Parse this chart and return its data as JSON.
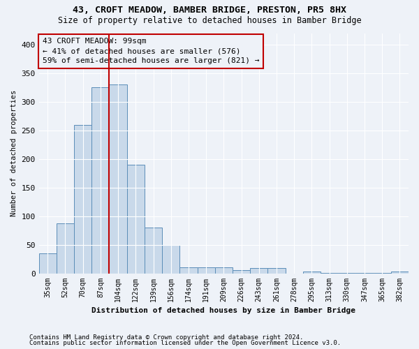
{
  "title1": "43, CROFT MEADOW, BAMBER BRIDGE, PRESTON, PR5 8HX",
  "title2": "Size of property relative to detached houses in Bamber Bridge",
  "xlabel": "Distribution of detached houses by size in Bamber Bridge",
  "ylabel": "Number of detached properties",
  "footnote1": "Contains HM Land Registry data © Crown copyright and database right 2024.",
  "footnote2": "Contains public sector information licensed under the Open Government Licence v3.0.",
  "annotation_line1": "43 CROFT MEADOW: 99sqm",
  "annotation_line2": "← 41% of detached houses are smaller (576)",
  "annotation_line3": "59% of semi-detached houses are larger (821) →",
  "bar_color": "#c9d9ea",
  "bar_edge_color": "#5b8db8",
  "vline_color": "#c00000",
  "categories": [
    "35sqm",
    "52sqm",
    "70sqm",
    "87sqm",
    "104sqm",
    "122sqm",
    "139sqm",
    "156sqm",
    "174sqm",
    "191sqm",
    "209sqm",
    "226sqm",
    "243sqm",
    "261sqm",
    "278sqm",
    "295sqm",
    "313sqm",
    "330sqm",
    "347sqm",
    "365sqm",
    "382sqm"
  ],
  "values": [
    35,
    87,
    260,
    325,
    330,
    190,
    80,
    50,
    11,
    11,
    11,
    6,
    9,
    9,
    0,
    3,
    1,
    1,
    1,
    1,
    3
  ],
  "vline_x": 3.5,
  "ylim": [
    0,
    420
  ],
  "yticks": [
    0,
    50,
    100,
    150,
    200,
    250,
    300,
    350,
    400
  ],
  "bg_color": "#eef2f8",
  "grid_color": "#ffffff"
}
